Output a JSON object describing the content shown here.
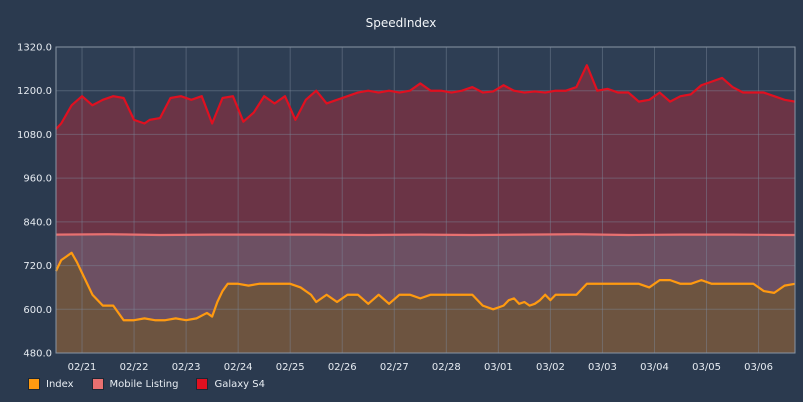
{
  "chart_data": {
    "type": "area",
    "title": "SpeedIndex",
    "xlabel": "",
    "ylabel": "",
    "ylim": [
      480,
      1320
    ],
    "yticks": [
      "480.0",
      "600.0",
      "720.0",
      "840.0",
      "960.0",
      "1080.0",
      "1200.0",
      "1320.0"
    ],
    "xticks": [
      "02/21",
      "02/22",
      "02/23",
      "02/24",
      "02/25",
      "02/26",
      "02/27",
      "02/28",
      "03/01",
      "03/02",
      "03/03",
      "03/04",
      "03/05",
      "03/06"
    ],
    "grid": true,
    "legend_position": "bottom-left",
    "x_start": 0,
    "x_end": 14.2,
    "series": [
      {
        "name": "Galaxy S4",
        "color": "#e01020",
        "fill": "#6b3446",
        "x": [
          0.0,
          0.1,
          0.3,
          0.5,
          0.7,
          0.9,
          1.1,
          1.3,
          1.5,
          1.7,
          1.8,
          2.0,
          2.2,
          2.4,
          2.6,
          2.8,
          3.0,
          3.2,
          3.4,
          3.6,
          3.8,
          4.0,
          4.2,
          4.4,
          4.6,
          4.8,
          5.0,
          5.2,
          5.4,
          5.6,
          5.8,
          6.0,
          6.2,
          6.4,
          6.6,
          6.8,
          7.0,
          7.2,
          7.4,
          7.6,
          7.8,
          8.0,
          8.2,
          8.4,
          8.6,
          8.8,
          9.0,
          9.2,
          9.4,
          9.6,
          9.8,
          10.0,
          10.2,
          10.4,
          10.6,
          10.8,
          11.0,
          11.2,
          11.4,
          11.6,
          11.8,
          12.0,
          12.2,
          12.4,
          12.6,
          12.8,
          13.0,
          13.2,
          13.4,
          13.6,
          13.8,
          14.0,
          14.2
        ],
        "values": [
          1095,
          1110,
          1160,
          1185,
          1160,
          1175,
          1185,
          1180,
          1120,
          1110,
          1120,
          1125,
          1180,
          1185,
          1175,
          1185,
          1110,
          1180,
          1185,
          1115,
          1140,
          1185,
          1165,
          1185,
          1120,
          1175,
          1200,
          1165,
          1175,
          1185,
          1195,
          1200,
          1195,
          1200,
          1195,
          1200,
          1220,
          1200,
          1200,
          1195,
          1200,
          1210,
          1195,
          1198,
          1215,
          1200,
          1195,
          1198,
          1195,
          1200,
          1200,
          1210,
          1270,
          1200,
          1205,
          1195,
          1195,
          1170,
          1175,
          1195,
          1170,
          1185,
          1190,
          1215,
          1225,
          1235,
          1210,
          1195,
          1195,
          1195,
          1185,
          1175,
          1170
        ]
      },
      {
        "name": "Mobile Listing",
        "color": "#e87070",
        "fill": "#6d5063",
        "x": [
          0.0,
          1.0,
          2.0,
          3.0,
          4.0,
          5.0,
          6.0,
          7.0,
          8.0,
          9.0,
          10.0,
          11.0,
          12.0,
          13.0,
          14.0,
          14.2
        ],
        "values": [
          805,
          806,
          804,
          805,
          805,
          805,
          804,
          805,
          804,
          805,
          806,
          804,
          805,
          805,
          804,
          804
        ]
      },
      {
        "name": "Index",
        "color": "#ff9a10",
        "fill": "#6d5440",
        "x": [
          0.0,
          0.1,
          0.2,
          0.3,
          0.4,
          0.5,
          0.7,
          0.9,
          1.1,
          1.3,
          1.5,
          1.7,
          1.9,
          2.1,
          2.3,
          2.5,
          2.7,
          2.9,
          3.0,
          3.1,
          3.2,
          3.3,
          3.5,
          3.7,
          3.9,
          4.1,
          4.3,
          4.5,
          4.7,
          4.9,
          5.0,
          5.2,
          5.4,
          5.6,
          5.8,
          6.0,
          6.2,
          6.4,
          6.6,
          6.8,
          7.0,
          7.2,
          7.4,
          7.6,
          7.8,
          8.0,
          8.2,
          8.4,
          8.6,
          8.7,
          8.8,
          8.9,
          9.0,
          9.1,
          9.2,
          9.3,
          9.4,
          9.5,
          9.6,
          9.7,
          9.8,
          10.0,
          10.2,
          10.4,
          10.6,
          10.8,
          11.0,
          11.2,
          11.4,
          11.6,
          11.8,
          12.0,
          12.2,
          12.4,
          12.6,
          12.8,
          13.0,
          13.2,
          13.4,
          13.6,
          13.8,
          14.0,
          14.2
        ],
        "values": [
          705,
          735,
          745,
          755,
          730,
          700,
          640,
          610,
          610,
          570,
          570,
          575,
          570,
          570,
          575,
          570,
          575,
          590,
          580,
          620,
          650,
          670,
          670,
          665,
          670,
          670,
          670,
          670,
          660,
          640,
          620,
          640,
          620,
          640,
          640,
          615,
          640,
          615,
          640,
          640,
          630,
          640,
          640,
          640,
          640,
          640,
          610,
          600,
          610,
          625,
          630,
          615,
          620,
          610,
          615,
          625,
          640,
          625,
          640,
          640,
          640,
          640,
          670,
          670,
          670,
          670,
          670,
          670,
          660,
          680,
          680,
          670,
          670,
          680,
          670,
          670,
          670,
          670,
          670,
          650,
          645,
          665,
          670
        ]
      }
    ]
  }
}
